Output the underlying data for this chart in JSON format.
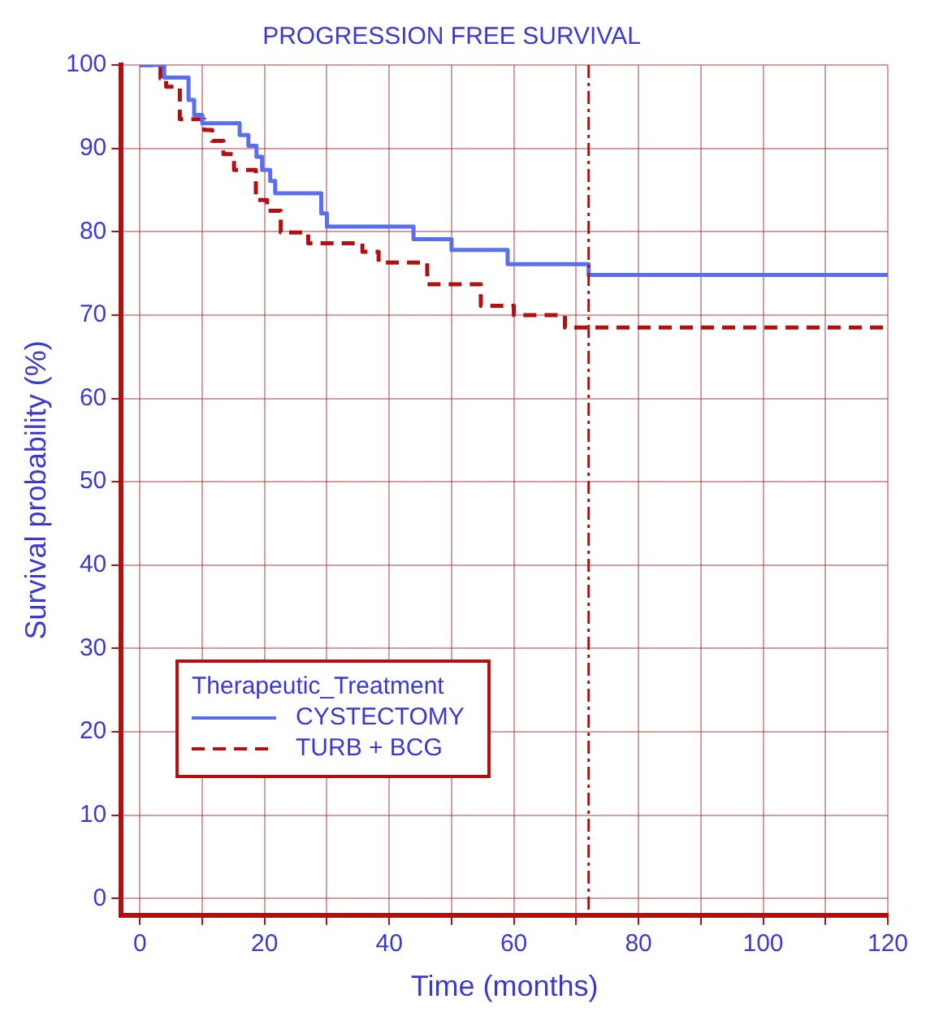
{
  "chart_data": {
    "type": "step",
    "title": "PROGRESSION FREE SURVIVAL",
    "xlabel": "Time (months)",
    "ylabel": "Survival probability (%)",
    "legend_title": "Therapeutic_Treatment",
    "xlim": [
      -3,
      120
    ],
    "ylim": [
      -2,
      100
    ],
    "xticks": [
      0,
      {
        "value": 10,
        "label": null
      },
      20,
      {
        "value": 30,
        "label": null
      },
      40,
      {
        "value": 50,
        "label": null
      },
      60,
      {
        "value": 70,
        "label": null
      },
      80,
      {
        "value": 90,
        "label": null
      },
      100,
      {
        "value": 110,
        "label": null
      },
      120
    ],
    "yticks": [
      0,
      10,
      20,
      30,
      40,
      50,
      60,
      70,
      80,
      90,
      100
    ],
    "grid": true,
    "legend": "bottom left",
    "series": [
      {
        "name": "CYSTECTOMY",
        "color": "#5a6ef0",
        "line_style": "solid",
        "x": [
          0,
          3.9,
          7.8,
          8.7,
          10,
          16,
          17.4,
          18.7,
          19.6,
          20.9,
          21.7,
          29.1,
          30,
          43.9,
          50,
          59,
          72,
          120
        ],
        "values": [
          100,
          98.5,
          95.8,
          94,
          93,
          91.6,
          90.3,
          89,
          87.4,
          86.1,
          84.6,
          82.2,
          80.6,
          79.1,
          77.8,
          76.1,
          74.8,
          74.8
        ]
      },
      {
        "name": "TURB + BCG",
        "color": "#b01010",
        "line_style": "dashed",
        "x": [
          0,
          3.3,
          4.2,
          6.4,
          10.3,
          11.6,
          13.4,
          15.1,
          18.6,
          20.4,
          22.6,
          27,
          35.7,
          38.3,
          46.1,
          54.7,
          60,
          68.2,
          120
        ],
        "values": [
          100,
          98.4,
          97.4,
          93.5,
          92.2,
          90.9,
          89.3,
          87.4,
          83.8,
          82.5,
          79.9,
          78.6,
          77.6,
          76.3,
          73.7,
          71.1,
          70,
          68.5,
          68.5
        ]
      }
    ],
    "ref_lines": [
      {
        "axis": "x",
        "value": 72,
        "color": "#b01010",
        "line_style": "dashdot"
      }
    ]
  }
}
